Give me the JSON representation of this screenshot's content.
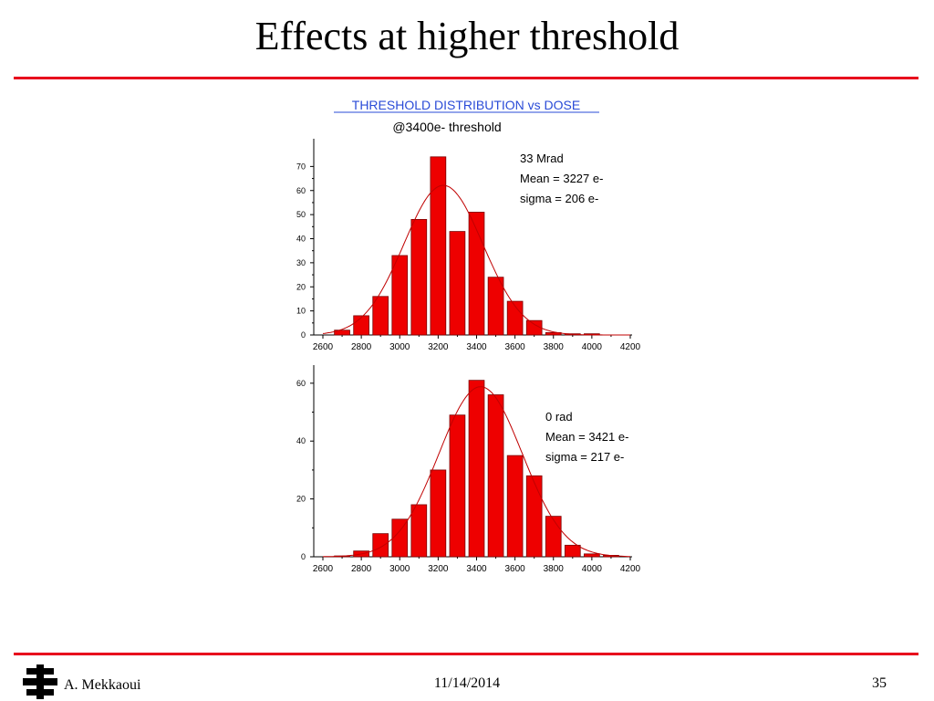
{
  "slide": {
    "title": "Effects at higher threshold",
    "accent_color": "#e8001c"
  },
  "chart_header": {
    "title": "THRESHOLD DISTRIBUTION vs DOSE",
    "subtitle": "@3400e- threshold",
    "title_color": "#2a4bd7"
  },
  "chart_data": [
    {
      "type": "bar",
      "bar_color": "#ee0000",
      "fit_color": "#c00000",
      "x": [
        2700,
        2800,
        2900,
        3000,
        3100,
        3200,
        3300,
        3400,
        3500,
        3600,
        3700,
        3800,
        3900,
        4000
      ],
      "values": [
        2,
        8,
        16,
        33,
        48,
        74,
        43,
        51,
        24,
        14,
        6,
        1,
        0.5,
        0.5
      ],
      "fit": {
        "mean": 3227,
        "sigma": 206
      },
      "xlim": [
        2600,
        4200
      ],
      "ylim": [
        0,
        80
      ],
      "xticks": [
        2600,
        2800,
        3000,
        3200,
        3400,
        3600,
        3800,
        4000,
        4200
      ],
      "yticks": [
        0,
        10,
        20,
        30,
        40,
        50,
        60,
        70
      ],
      "annotations": [
        "33 Mrad",
        "Mean  = 3227 e-",
        "sigma = 206  e-"
      ]
    },
    {
      "type": "bar",
      "bar_color": "#ee0000",
      "fit_color": "#c00000",
      "x": [
        2700,
        2800,
        2900,
        3000,
        3100,
        3200,
        3300,
        3400,
        3500,
        3600,
        3700,
        3800,
        3900,
        4000,
        4100
      ],
      "values": [
        0.3,
        2,
        8,
        13,
        18,
        30,
        49,
        61,
        56,
        35,
        28,
        14,
        4,
        1,
        0.5
      ],
      "fit": {
        "mean": 3421,
        "sigma": 217
      },
      "xlim": [
        2600,
        4200
      ],
      "ylim": [
        0,
        65
      ],
      "xticks": [
        2600,
        2800,
        3000,
        3200,
        3400,
        3600,
        3800,
        4000,
        4200
      ],
      "yticks": [
        0,
        20,
        40,
        60
      ],
      "annotations": [
        "0 rad",
        "Mean  = 3421 e-",
        "sigma = 217  e-"
      ]
    }
  ],
  "footer": {
    "author": "A. Mekkaoui",
    "date": "11/14/2014",
    "page": "35",
    "logo_icon": "fermilab-logo-icon"
  }
}
